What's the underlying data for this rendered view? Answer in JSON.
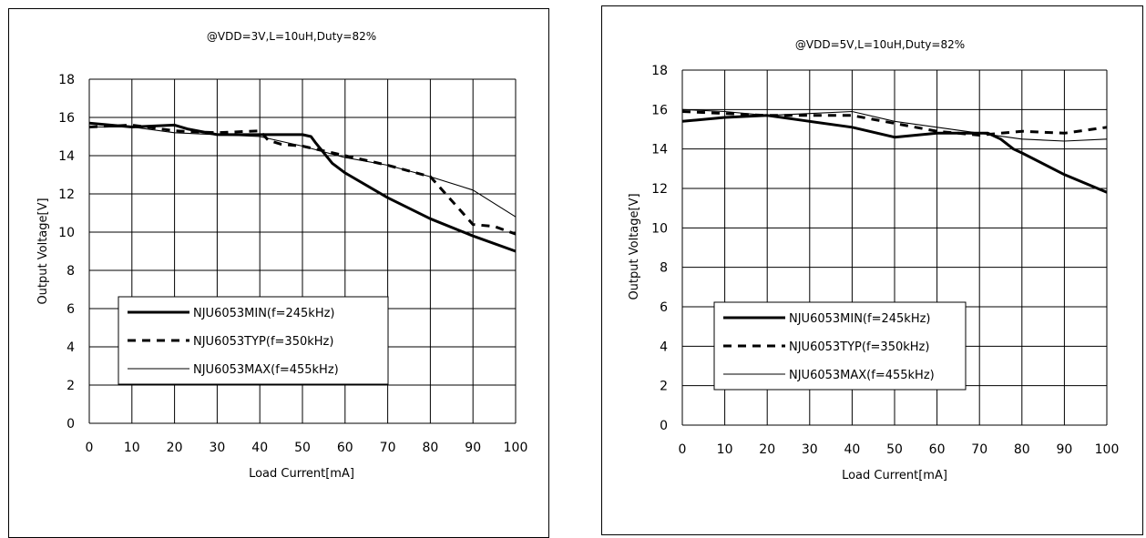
{
  "chart_data": [
    {
      "type": "line",
      "title": "@VDD=3V,L=10uH,Duty=82%",
      "xlabel": "Load Current[mA]",
      "ylabel": "Output Voltage[V]",
      "xlim": [
        0,
        100
      ],
      "ylim": [
        0,
        18
      ],
      "xticks": [
        "0",
        "10",
        "20",
        "30",
        "40",
        "50",
        "60",
        "70",
        "80",
        "90",
        "100"
      ],
      "yticks": [
        "0",
        "2",
        "4",
        "6",
        "8",
        "10",
        "12",
        "14",
        "16",
        "18"
      ],
      "grid": true,
      "legend_position": "lower-left",
      "series": [
        {
          "name": "NJU6053MIN(f=245kHz)",
          "style": "thick",
          "x": [
            0,
            10,
            20,
            23,
            30,
            40,
            50,
            52,
            53,
            57,
            60,
            70,
            80,
            90,
            100
          ],
          "y": [
            15.7,
            15.5,
            15.6,
            15.4,
            15.1,
            15.1,
            15.1,
            15.0,
            14.7,
            13.6,
            13.1,
            11.8,
            10.7,
            9.8,
            9.0
          ]
        },
        {
          "name": "NJU6053TYP(f=350kHz)",
          "style": "dashed",
          "x": [
            0,
            10,
            20,
            30,
            40,
            42,
            45,
            50,
            60,
            70,
            80,
            90,
            95,
            100
          ],
          "y": [
            15.5,
            15.6,
            15.3,
            15.2,
            15.3,
            14.8,
            14.6,
            14.5,
            14.0,
            13.5,
            12.9,
            10.4,
            10.3,
            9.9
          ]
        },
        {
          "name": "NJU6053MAX(f=455kHz)",
          "style": "thin",
          "x": [
            0,
            10,
            20,
            30,
            40,
            50,
            60,
            70,
            80,
            90,
            100
          ],
          "y": [
            15.5,
            15.5,
            15.2,
            15.1,
            15.0,
            14.5,
            13.9,
            13.5,
            12.9,
            12.2,
            10.8
          ]
        }
      ]
    },
    {
      "type": "line",
      "title": "@VDD=5V,L=10uH,Duty=82%",
      "xlabel": "Load Current[mA]",
      "ylabel": "Output Voltage[V]",
      "xlim": [
        0,
        100
      ],
      "ylim": [
        0,
        18
      ],
      "xticks": [
        "0",
        "10",
        "20",
        "30",
        "40",
        "50",
        "60",
        "70",
        "80",
        "90",
        "100"
      ],
      "yticks": [
        "0",
        "2",
        "4",
        "6",
        "8",
        "10",
        "12",
        "14",
        "16",
        "18"
      ],
      "grid": true,
      "legend_position": "lower-left",
      "series": [
        {
          "name": "NJU6053MIN(f=245kHz)",
          "style": "thick",
          "x": [
            0,
            10,
            20,
            30,
            40,
            50,
            60,
            70,
            72,
            75,
            78,
            80,
            90,
            100
          ],
          "y": [
            15.4,
            15.6,
            15.7,
            15.4,
            15.1,
            14.6,
            14.8,
            14.8,
            14.8,
            14.5,
            14.0,
            13.8,
            12.7,
            11.8
          ]
        },
        {
          "name": "NJU6053TYP(f=350kHz)",
          "style": "dashed",
          "x": [
            0,
            10,
            20,
            30,
            40,
            50,
            60,
            70,
            80,
            90,
            100
          ],
          "y": [
            15.9,
            15.8,
            15.7,
            15.7,
            15.7,
            15.3,
            14.9,
            14.7,
            14.9,
            14.8,
            15.1
          ]
        },
        {
          "name": "NJU6053MAX(f=455kHz)",
          "style": "thin",
          "x": [
            0,
            10,
            20,
            30,
            40,
            50,
            60,
            70,
            80,
            90,
            100
          ],
          "y": [
            16.0,
            15.9,
            15.7,
            15.8,
            15.9,
            15.4,
            15.1,
            14.8,
            14.5,
            14.4,
            14.5
          ]
        }
      ]
    }
  ]
}
